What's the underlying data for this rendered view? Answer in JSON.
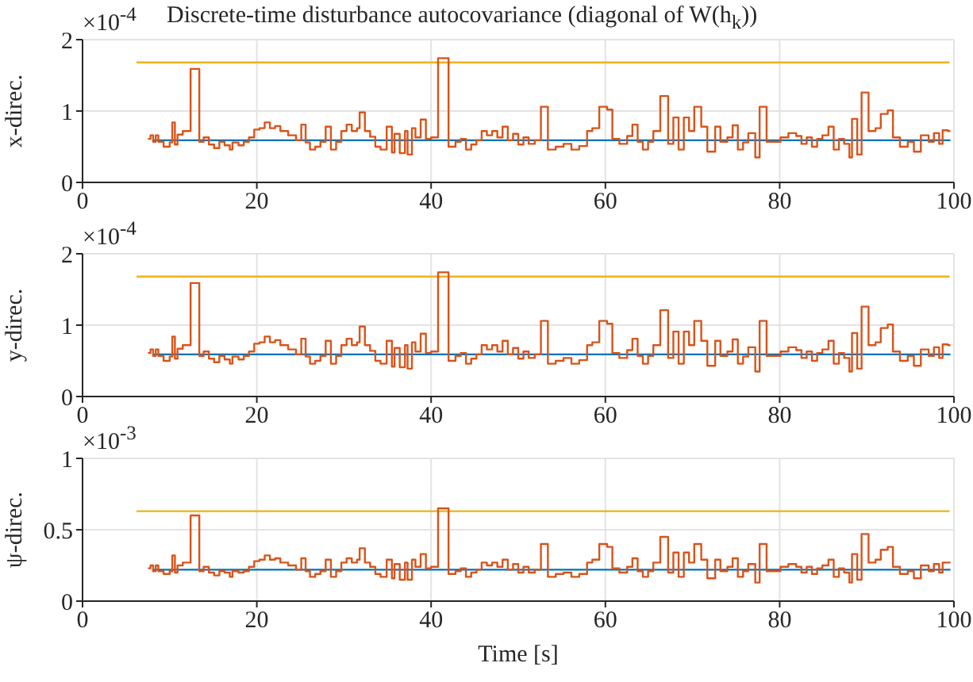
{
  "chart_data": [
    {
      "type": "step",
      "title": "Discrete-time disturbance autocovariance (diagonal of W(h$_{k}$))",
      "ylabel": "x-direc.",
      "annotations": [
        "×10$^{-4}$"
      ],
      "xlim": [
        0,
        100
      ],
      "xticks": [
        0,
        20,
        40,
        60,
        80,
        100
      ],
      "ylim": [
        0,
        2
      ],
      "yticks": [
        0,
        1,
        2
      ],
      "grid": true,
      "marker": "none",
      "line_style": "solid",
      "x": [
        7.5,
        7.8,
        8.1,
        8.4,
        8.7,
        9.3,
        10.0,
        10.3,
        10.6,
        10.9,
        11.5,
        12.4,
        13.4,
        13.9,
        14.5,
        15.1,
        15.7,
        16.3,
        16.9,
        17.2,
        17.9,
        18.5,
        19.1,
        19.7,
        20.3,
        20.9,
        21.5,
        22.1,
        22.7,
        23.6,
        24.5,
        25.1,
        25.6,
        26.1,
        26.7,
        27.3,
        27.9,
        28.5,
        29.1,
        29.7,
        30.3,
        30.9,
        31.5,
        31.8,
        32.4,
        33.0,
        33.6,
        34.2,
        34.9,
        35.5,
        35.8,
        36.4,
        37.0,
        37.3,
        37.8,
        38.2,
        38.8,
        39.4,
        40.0,
        40.8,
        42.0,
        42.8,
        43.4,
        44.0,
        44.6,
        45.2,
        45.8,
        46.4,
        47.0,
        47.6,
        48.2,
        48.8,
        49.4,
        50.0,
        50.6,
        51.2,
        51.9,
        52.6,
        53.4,
        54.3,
        55.2,
        56.1,
        57.0,
        57.9,
        58.5,
        59.3,
        60.2,
        60.8,
        61.6,
        62.5,
        63.1,
        63.7,
        64.3,
        64.9,
        65.5,
        66.3,
        67.2,
        67.8,
        68.4,
        69.0,
        69.6,
        70.2,
        71.0,
        71.7,
        72.6,
        73.2,
        74.0,
        74.6,
        75.2,
        75.8,
        76.4,
        77.2,
        77.7,
        78.5,
        80.1,
        81.0,
        81.9,
        82.5,
        83.1,
        83.7,
        84.3,
        84.9,
        85.6,
        86.2,
        86.8,
        87.4,
        88.0,
        88.3,
        88.9,
        89.4,
        90.2,
        91.0,
        91.6,
        92.4,
        93.0,
        93.8,
        94.7,
        95.4,
        96.2,
        97.1,
        97.7,
        98.3,
        98.7,
        99.3,
        99.6
      ],
      "series": [
        {
          "type": "line",
          "color": "#edb120",
          "x": [
            6.2,
            99.5
          ],
          "values": [
            1.68,
            1.68
          ]
        },
        {
          "type": "line",
          "color": "#0072bd",
          "x": [
            8.2,
            99.6
          ],
          "values": [
            0.59,
            0.59
          ]
        },
        {
          "type": "step",
          "color": "#d95319",
          "values": [
            0.61,
            0.66,
            0.57,
            0.66,
            0.57,
            0.5,
            0.56,
            0.84,
            0.53,
            0.67,
            0.72,
            1.59,
            0.57,
            0.63,
            0.53,
            0.48,
            0.57,
            0.52,
            0.46,
            0.56,
            0.52,
            0.57,
            0.63,
            0.74,
            0.76,
            0.84,
            0.76,
            0.79,
            0.72,
            0.66,
            0.59,
            0.81,
            0.56,
            0.46,
            0.5,
            0.57,
            0.78,
            0.46,
            0.57,
            0.72,
            0.81,
            0.72,
            0.76,
            0.98,
            0.72,
            0.64,
            0.5,
            0.46,
            0.78,
            0.42,
            0.68,
            0.41,
            0.72,
            0.39,
            0.76,
            0.63,
            0.88,
            0.61,
            0.63,
            1.74,
            0.5,
            0.57,
            0.61,
            0.46,
            0.53,
            0.59,
            0.72,
            0.66,
            0.72,
            0.63,
            0.78,
            0.59,
            0.68,
            0.53,
            0.63,
            0.54,
            0.59,
            1.06,
            0.46,
            0.5,
            0.54,
            0.46,
            0.51,
            0.72,
            0.76,
            1.06,
            1.02,
            0.61,
            0.54,
            0.65,
            0.81,
            0.57,
            0.46,
            0.57,
            0.72,
            1.21,
            0.54,
            0.91,
            0.46,
            0.91,
            0.72,
            1.06,
            0.78,
            0.43,
            0.78,
            0.57,
            0.63,
            0.8,
            0.46,
            0.56,
            0.69,
            0.35,
            1.06,
            0.57,
            0.63,
            0.69,
            0.65,
            0.54,
            0.63,
            0.5,
            0.61,
            0.66,
            0.78,
            0.46,
            0.61,
            0.54,
            0.35,
            0.89,
            0.39,
            1.26,
            0.72,
            0.76,
            0.96,
            1.01,
            0.63,
            0.5,
            0.57,
            0.43,
            0.66,
            0.57,
            0.69,
            0.54,
            0.73,
            0.72,
            0.72
          ]
        }
      ]
    },
    {
      "type": "step",
      "ylabel": "y-direc.",
      "annotations": [
        "×10$^{-4}$"
      ],
      "xlim": [
        0,
        100
      ],
      "xticks": [
        0,
        20,
        40,
        60,
        80,
        100
      ],
      "ylim": [
        0,
        2
      ],
      "yticks": [
        0,
        1,
        2
      ],
      "grid": true,
      "marker": "none",
      "line_style": "solid",
      "x": [
        7.5,
        7.8,
        8.1,
        8.4,
        8.7,
        9.3,
        10.0,
        10.3,
        10.6,
        10.9,
        11.5,
        12.4,
        13.4,
        13.9,
        14.5,
        15.1,
        15.7,
        16.3,
        16.9,
        17.2,
        17.9,
        18.5,
        19.1,
        19.7,
        20.3,
        20.9,
        21.5,
        22.1,
        22.7,
        23.6,
        24.5,
        25.1,
        25.6,
        26.1,
        26.7,
        27.3,
        27.9,
        28.5,
        29.1,
        29.7,
        30.3,
        30.9,
        31.5,
        31.8,
        32.4,
        33.0,
        33.6,
        34.2,
        34.9,
        35.5,
        35.8,
        36.4,
        37.0,
        37.3,
        37.8,
        38.2,
        38.8,
        39.4,
        40.0,
        40.8,
        42.0,
        42.8,
        43.4,
        44.0,
        44.6,
        45.2,
        45.8,
        46.4,
        47.0,
        47.6,
        48.2,
        48.8,
        49.4,
        50.0,
        50.6,
        51.2,
        51.9,
        52.6,
        53.4,
        54.3,
        55.2,
        56.1,
        57.0,
        57.9,
        58.5,
        59.3,
        60.2,
        60.8,
        61.6,
        62.5,
        63.1,
        63.7,
        64.3,
        64.9,
        65.5,
        66.3,
        67.2,
        67.8,
        68.4,
        69.0,
        69.6,
        70.2,
        71.0,
        71.7,
        72.6,
        73.2,
        74.0,
        74.6,
        75.2,
        75.8,
        76.4,
        77.2,
        77.7,
        78.5,
        80.1,
        81.0,
        81.9,
        82.5,
        83.1,
        83.7,
        84.3,
        84.9,
        85.6,
        86.2,
        86.8,
        87.4,
        88.0,
        88.3,
        88.9,
        89.4,
        90.2,
        91.0,
        91.6,
        92.4,
        93.0,
        93.8,
        94.7,
        95.4,
        96.2,
        97.1,
        97.7,
        98.3,
        98.7,
        99.3,
        99.6
      ],
      "series": [
        {
          "type": "line",
          "color": "#edb120",
          "x": [
            6.2,
            99.5
          ],
          "values": [
            1.68,
            1.68
          ]
        },
        {
          "type": "line",
          "color": "#0072bd",
          "x": [
            8.2,
            99.6
          ],
          "values": [
            0.59,
            0.59
          ]
        },
        {
          "type": "step",
          "color": "#d95319",
          "values": [
            0.61,
            0.66,
            0.57,
            0.66,
            0.57,
            0.5,
            0.56,
            0.84,
            0.53,
            0.67,
            0.72,
            1.59,
            0.57,
            0.63,
            0.53,
            0.48,
            0.57,
            0.52,
            0.46,
            0.56,
            0.52,
            0.57,
            0.63,
            0.74,
            0.76,
            0.84,
            0.76,
            0.79,
            0.72,
            0.66,
            0.59,
            0.81,
            0.56,
            0.46,
            0.5,
            0.57,
            0.78,
            0.46,
            0.57,
            0.72,
            0.81,
            0.72,
            0.76,
            0.98,
            0.72,
            0.64,
            0.5,
            0.46,
            0.78,
            0.42,
            0.68,
            0.41,
            0.72,
            0.39,
            0.76,
            0.63,
            0.88,
            0.61,
            0.63,
            1.74,
            0.5,
            0.57,
            0.61,
            0.46,
            0.53,
            0.59,
            0.72,
            0.66,
            0.72,
            0.63,
            0.78,
            0.59,
            0.68,
            0.53,
            0.63,
            0.54,
            0.59,
            1.06,
            0.46,
            0.5,
            0.54,
            0.46,
            0.51,
            0.72,
            0.76,
            1.06,
            1.02,
            0.61,
            0.54,
            0.65,
            0.81,
            0.57,
            0.46,
            0.57,
            0.72,
            1.21,
            0.54,
            0.91,
            0.46,
            0.91,
            0.72,
            1.06,
            0.78,
            0.43,
            0.78,
            0.57,
            0.63,
            0.8,
            0.46,
            0.56,
            0.69,
            0.35,
            1.06,
            0.57,
            0.63,
            0.69,
            0.65,
            0.54,
            0.63,
            0.5,
            0.61,
            0.66,
            0.78,
            0.46,
            0.61,
            0.54,
            0.35,
            0.89,
            0.39,
            1.26,
            0.72,
            0.76,
            0.96,
            1.01,
            0.63,
            0.5,
            0.57,
            0.43,
            0.66,
            0.57,
            0.69,
            0.54,
            0.73,
            0.72,
            0.72
          ]
        }
      ]
    },
    {
      "type": "step",
      "xlabel": "Time [s]",
      "ylabel": "ψ-direc.",
      "annotations": [
        "×10$^{-3}$"
      ],
      "xlim": [
        0,
        100
      ],
      "xticks": [
        0,
        20,
        40,
        60,
        80,
        100
      ],
      "ylim": [
        0,
        1
      ],
      "yticks": [
        0,
        0.5,
        1
      ],
      "grid": true,
      "marker": "none",
      "line_style": "solid",
      "x": [
        7.5,
        7.8,
        8.1,
        8.4,
        8.7,
        9.3,
        10.0,
        10.3,
        10.6,
        10.9,
        11.5,
        12.4,
        13.4,
        13.9,
        14.5,
        15.1,
        15.7,
        16.3,
        16.9,
        17.2,
        17.9,
        18.5,
        19.1,
        19.7,
        20.3,
        20.9,
        21.5,
        22.1,
        22.7,
        23.6,
        24.5,
        25.1,
        25.6,
        26.1,
        26.7,
        27.3,
        27.9,
        28.5,
        29.1,
        29.7,
        30.3,
        30.9,
        31.5,
        31.8,
        32.4,
        33.0,
        33.6,
        34.2,
        34.9,
        35.5,
        35.8,
        36.4,
        37.0,
        37.3,
        37.8,
        38.2,
        38.8,
        39.4,
        40.0,
        40.8,
        42.0,
        42.8,
        43.4,
        44.0,
        44.6,
        45.2,
        45.8,
        46.4,
        47.0,
        47.6,
        48.2,
        48.8,
        49.4,
        50.0,
        50.6,
        51.2,
        51.9,
        52.6,
        53.4,
        54.3,
        55.2,
        56.1,
        57.0,
        57.9,
        58.5,
        59.3,
        60.2,
        60.8,
        61.6,
        62.5,
        63.1,
        63.7,
        64.3,
        64.9,
        65.5,
        66.3,
        67.2,
        67.8,
        68.4,
        69.0,
        69.6,
        70.2,
        71.0,
        71.7,
        72.6,
        73.2,
        74.0,
        74.6,
        75.2,
        75.8,
        76.4,
        77.2,
        77.7,
        78.5,
        80.1,
        81.0,
        81.9,
        82.5,
        83.1,
        83.7,
        84.3,
        84.9,
        85.6,
        86.2,
        86.8,
        87.4,
        88.0,
        88.3,
        88.9,
        89.4,
        90.2,
        91.0,
        91.6,
        92.4,
        93.0,
        93.8,
        94.7,
        95.4,
        96.2,
        97.1,
        97.7,
        98.3,
        98.7,
        99.3,
        99.6
      ],
      "series": [
        {
          "type": "line",
          "color": "#edb120",
          "x": [
            6.2,
            99.5
          ],
          "values": [
            0.63,
            0.63
          ]
        },
        {
          "type": "line",
          "color": "#0072bd",
          "x": [
            8.2,
            99.6
          ],
          "values": [
            0.22,
            0.22
          ]
        },
        {
          "type": "step",
          "color": "#d95319",
          "values": [
            0.23,
            0.25,
            0.21,
            0.25,
            0.21,
            0.19,
            0.21,
            0.32,
            0.2,
            0.25,
            0.27,
            0.6,
            0.21,
            0.24,
            0.2,
            0.18,
            0.21,
            0.2,
            0.17,
            0.21,
            0.2,
            0.21,
            0.24,
            0.28,
            0.29,
            0.32,
            0.29,
            0.3,
            0.27,
            0.25,
            0.22,
            0.3,
            0.21,
            0.17,
            0.19,
            0.21,
            0.29,
            0.17,
            0.21,
            0.27,
            0.3,
            0.27,
            0.29,
            0.37,
            0.27,
            0.24,
            0.19,
            0.17,
            0.29,
            0.16,
            0.26,
            0.15,
            0.27,
            0.15,
            0.29,
            0.24,
            0.33,
            0.23,
            0.24,
            0.65,
            0.19,
            0.21,
            0.23,
            0.17,
            0.2,
            0.22,
            0.27,
            0.25,
            0.27,
            0.24,
            0.29,
            0.22,
            0.26,
            0.2,
            0.24,
            0.2,
            0.22,
            0.4,
            0.17,
            0.19,
            0.2,
            0.17,
            0.19,
            0.27,
            0.29,
            0.4,
            0.38,
            0.23,
            0.2,
            0.24,
            0.3,
            0.21,
            0.17,
            0.21,
            0.27,
            0.45,
            0.2,
            0.34,
            0.17,
            0.34,
            0.27,
            0.4,
            0.29,
            0.16,
            0.29,
            0.21,
            0.24,
            0.3,
            0.17,
            0.21,
            0.26,
            0.13,
            0.4,
            0.21,
            0.24,
            0.26,
            0.24,
            0.2,
            0.24,
            0.19,
            0.23,
            0.25,
            0.29,
            0.17,
            0.23,
            0.2,
            0.13,
            0.33,
            0.15,
            0.47,
            0.27,
            0.29,
            0.36,
            0.38,
            0.24,
            0.19,
            0.21,
            0.16,
            0.25,
            0.21,
            0.26,
            0.2,
            0.27,
            0.27,
            0.27
          ]
        }
      ]
    }
  ]
}
